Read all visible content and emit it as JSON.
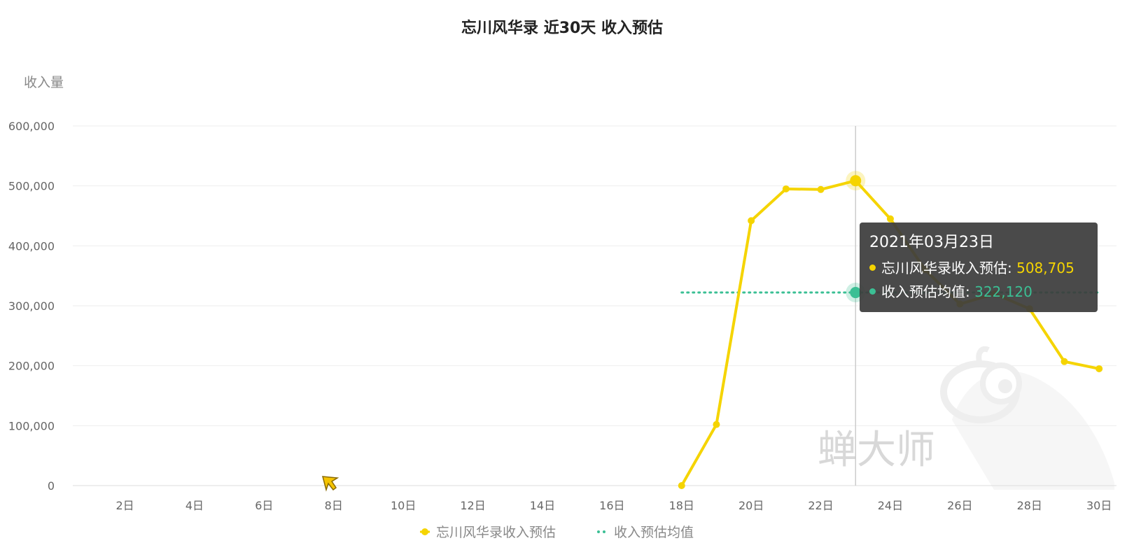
{
  "colors": {
    "series": "#f5d400",
    "average": "#3bbf94",
    "grid": "#eeeeee",
    "tooltip_bg": "#3c3c3c"
  },
  "watermark": {
    "text": "蝉大师",
    "icon": "cicada-mascot-icon"
  },
  "tooltip": {
    "date": "2021年03月23日",
    "rows": [
      {
        "name": "忘川风华录收入预估",
        "value": "508,705",
        "color": "#f5d400"
      },
      {
        "name": "收入预估均值",
        "value": "322,120",
        "color": "#3bbf94"
      }
    ]
  },
  "chart_data": {
    "type": "line",
    "title": "忘川风华录 近30天 收入预估",
    "ylabel": "收入量",
    "xlabel": "",
    "ylim": [
      0,
      600000
    ],
    "yticks": [
      "0",
      "100,000",
      "200,000",
      "300,000",
      "400,000",
      "500,000",
      "600,000"
    ],
    "x_range": [
      1,
      30
    ],
    "xticks": [
      {
        "day": 2,
        "label": "2日"
      },
      {
        "day": 4,
        "label": "4日"
      },
      {
        "day": 6,
        "label": "6日"
      },
      {
        "day": 8,
        "label": "8日"
      },
      {
        "day": 10,
        "label": "10日"
      },
      {
        "day": 12,
        "label": "12日"
      },
      {
        "day": 14,
        "label": "14日"
      },
      {
        "day": 16,
        "label": "16日"
      },
      {
        "day": 18,
        "label": "18日"
      },
      {
        "day": 20,
        "label": "20日"
      },
      {
        "day": 22,
        "label": "22日"
      },
      {
        "day": 24,
        "label": "24日"
      },
      {
        "day": 26,
        "label": "26日"
      },
      {
        "day": 28,
        "label": "28日"
      },
      {
        "day": 30,
        "label": "30日"
      }
    ],
    "series": [
      {
        "name": "忘川风华录收入预估",
        "color": "#f5d400",
        "points": [
          {
            "day": 18,
            "value": 0
          },
          {
            "day": 19,
            "value": 102000
          },
          {
            "day": 20,
            "value": 442000
          },
          {
            "day": 21,
            "value": 495000
          },
          {
            "day": 22,
            "value": 494000
          },
          {
            "day": 23,
            "value": 508705
          },
          {
            "day": 24,
            "value": 445000
          },
          {
            "day": 25,
            "value": 360000
          },
          {
            "day": 26,
            "value": 303000
          },
          {
            "day": 27,
            "value": 320000
          },
          {
            "day": 28,
            "value": 295000
          },
          {
            "day": 29,
            "value": 207000
          },
          {
            "day": 30,
            "value": 195000
          }
        ]
      },
      {
        "name": "收入预估均值",
        "color": "#3bbf94",
        "style": "dotted",
        "value": 322120,
        "from_day": 18,
        "to_day": 30
      }
    ],
    "highlight_day": 23,
    "legend": [
      "忘川风华录收入预估",
      "收入预估均值"
    ],
    "legend_position": "bottom-center",
    "grid": true
  }
}
